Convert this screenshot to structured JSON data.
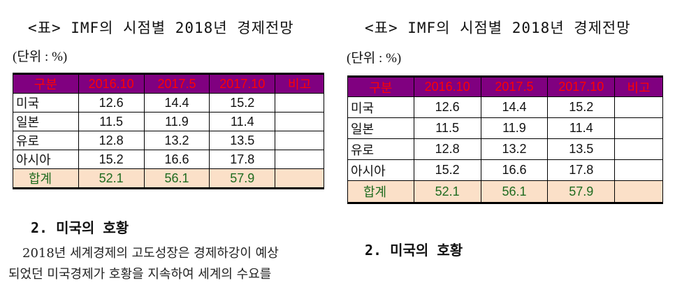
{
  "left": {
    "title": "<표> IMF의 시점별 2018년 경제전망",
    "unit": "(단위 : %)",
    "headers": [
      "구분",
      "2016.10",
      "2017.5",
      "2017.10",
      "비고"
    ],
    "rows": [
      {
        "name": "미국",
        "v1": "12.6",
        "v2": "14.4",
        "v3": "15.2",
        "note": ""
      },
      {
        "name": "일본",
        "v1": "11.5",
        "v2": "11.9",
        "v3": "11.4",
        "note": ""
      },
      {
        "name": "유로",
        "v1": "12.8",
        "v2": "13.2",
        "v3": "13.5",
        "note": ""
      },
      {
        "name": "아시아",
        "v1": "15.2",
        "v2": "16.6",
        "v3": "17.8",
        "note": ""
      }
    ],
    "total": {
      "name": "합계",
      "v1": "52.1",
      "v2": "56.1",
      "v3": "57.9",
      "note": ""
    },
    "heading": "2. 미국의 호황",
    "para_line1": "2018년 세계경제의 고도성장은 경제하강이 예상",
    "para_line2": "되었던 미국경제가 호황을 지속하여 세계의 수요를"
  },
  "right": {
    "title": "<표> IMF의 시점별 2018년 경제전망",
    "unit": "(단위 : %)",
    "headers": [
      "구분",
      "2016.10",
      "2017.5",
      "2017.10",
      "비고"
    ],
    "rows": [
      {
        "name": "미국",
        "v1": "12.6",
        "v2": "14.4",
        "v3": "15.2",
        "note": ""
      },
      {
        "name": "일본",
        "v1": "11.5",
        "v2": "11.9",
        "v3": "11.4",
        "note": ""
      },
      {
        "name": "유로",
        "v1": "12.8",
        "v2": "13.2",
        "v3": "13.5",
        "note": ""
      },
      {
        "name": "아시아",
        "v1": "15.2",
        "v2": "16.6",
        "v3": "17.8",
        "note": ""
      }
    ],
    "total": {
      "name": "합계",
      "v1": "52.1",
      "v2": "56.1",
      "v3": "57.9",
      "note": ""
    },
    "heading": "2. 미국의 호황"
  },
  "colors": {
    "header_bg": "#800080",
    "header_text": "#ff0000",
    "total_bg": "#fbe0c8",
    "total_text": "#1f6b1f"
  }
}
